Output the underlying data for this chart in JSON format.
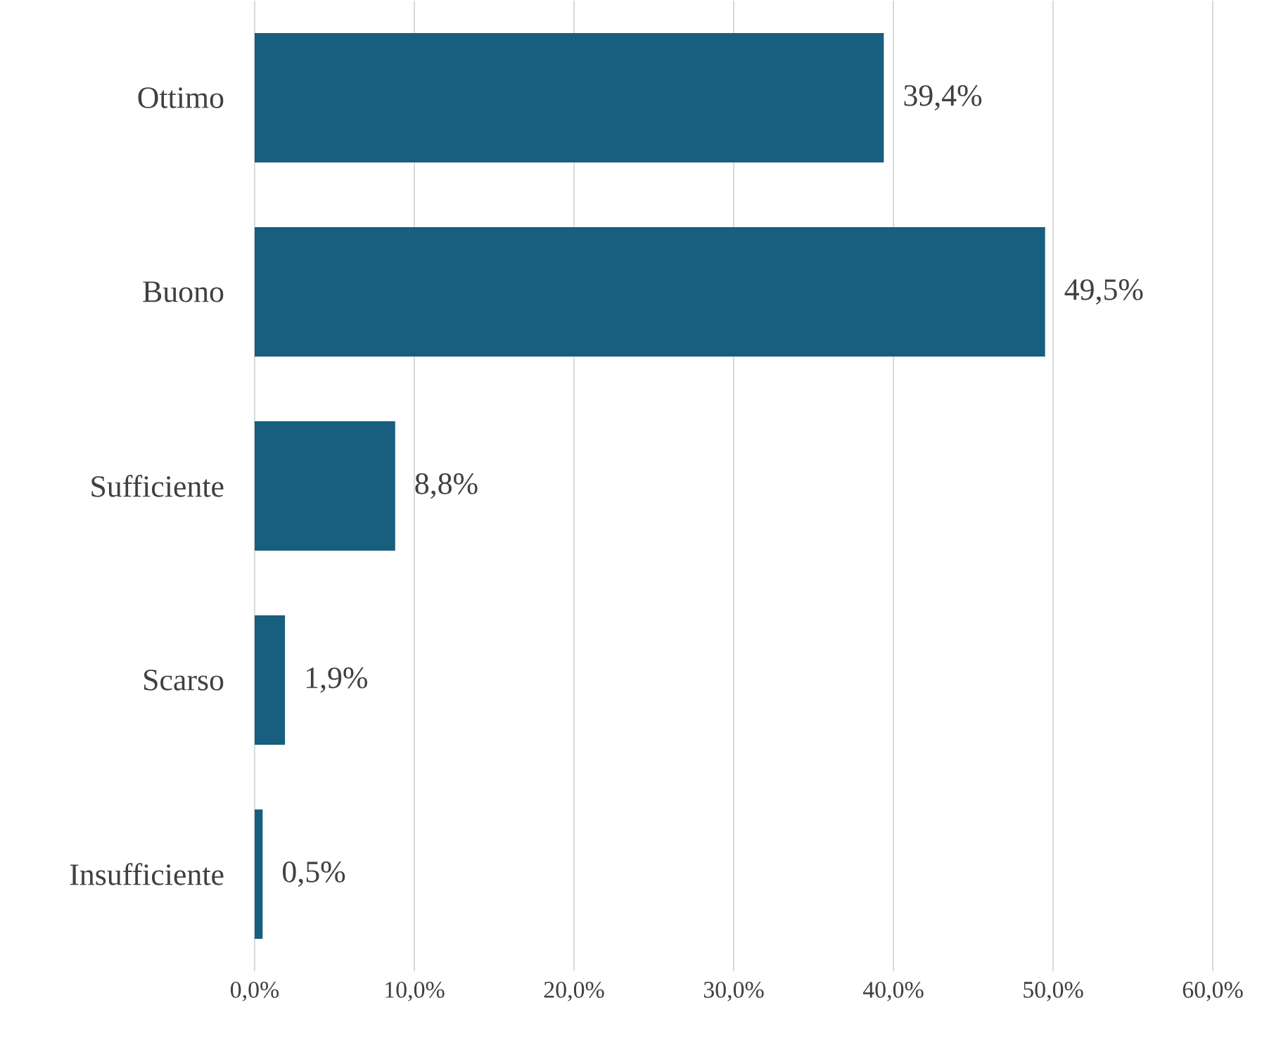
{
  "chart_data": {
    "type": "bar",
    "orientation": "horizontal",
    "categories": [
      "Ottimo",
      "Buono",
      "Sufficiente",
      "Scarso",
      "Insufficiente"
    ],
    "values": [
      39.4,
      49.5,
      8.8,
      1.9,
      0.5
    ],
    "value_labels": [
      "39,4%",
      "49,5%",
      "8,8%",
      "1,9%",
      "0,5%"
    ],
    "color": "#175e7f",
    "xlim": [
      0,
      60
    ],
    "xticks": [
      {
        "value": 0,
        "label": "0,0%"
      },
      {
        "value": 10,
        "label": "10,0%"
      },
      {
        "value": 20,
        "label": "20,0%"
      },
      {
        "value": 30,
        "label": "30,0%"
      },
      {
        "value": 40,
        "label": "40,0%"
      },
      {
        "value": 50,
        "label": "50,0%"
      },
      {
        "value": 60,
        "label": "60,0%"
      }
    ],
    "grid": "x"
  }
}
